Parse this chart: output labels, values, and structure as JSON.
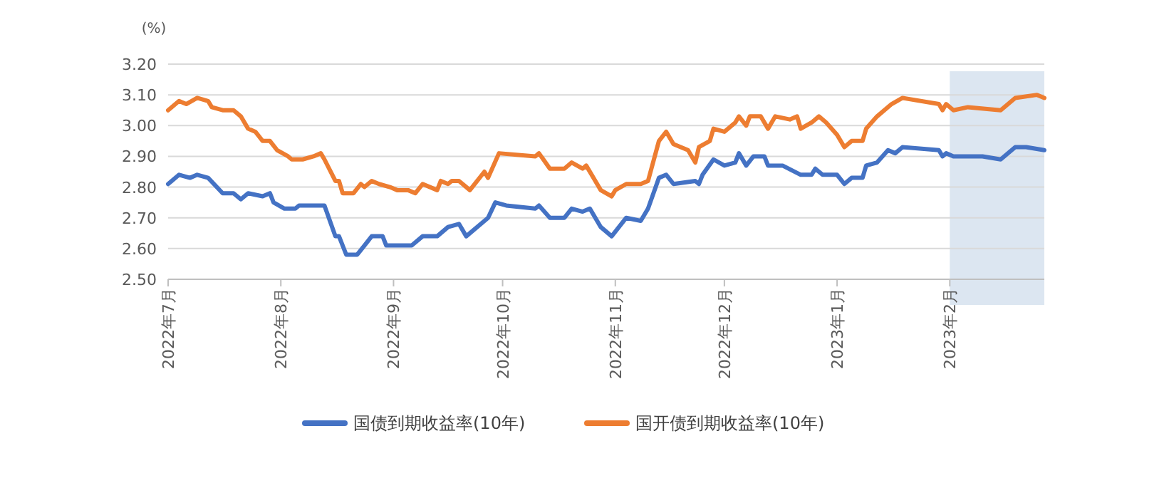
{
  "chart_data": {
    "type": "line",
    "ylabel": "(%)",
    "xlim": [
      "2022-07-01",
      "2023-02-27"
    ],
    "xticks": [
      {
        "value": "2022-07-01",
        "label": "2022年7月"
      },
      {
        "value": "2022-08-01",
        "label": "2022年8月"
      },
      {
        "value": "2022-09-01",
        "label": "2022年9月"
      },
      {
        "value": "2022-10-01",
        "label": "2022年10月"
      },
      {
        "value": "2022-11-01",
        "label": "2022年11月"
      },
      {
        "value": "2022-12-01",
        "label": "2022年12月"
      },
      {
        "value": "2023-01-01",
        "label": "2023年1月"
      },
      {
        "value": "2023-02-01",
        "label": "2023年2月"
      }
    ],
    "ylim": [
      2.5,
      3.2
    ],
    "yticks": [
      {
        "value": 2.5,
        "label": "2.50"
      },
      {
        "value": 2.6,
        "label": "2.60"
      },
      {
        "value": 2.7,
        "label": "2.70"
      },
      {
        "value": 2.8,
        "label": "2.80"
      },
      {
        "value": 2.9,
        "label": "2.90"
      },
      {
        "value": 3.0,
        "label": "3.00"
      },
      {
        "value": 3.1,
        "label": "3.10"
      },
      {
        "value": 3.2,
        "label": "3.20"
      }
    ],
    "grid": "y",
    "legend": "bottom",
    "marker": "none",
    "line_style": "solid",
    "bands": [
      {
        "axis": "x",
        "from": "2023-02-01",
        "to": "2023-02-27",
        "color": "#dce6f1"
      }
    ],
    "series": [
      {
        "name": "国债到期收益率(10年)",
        "color": "#4472c4",
        "x": [
          "2022-07-01",
          "2022-07-04",
          "2022-07-07",
          "2022-07-09",
          "2022-07-12",
          "2022-07-16",
          "2022-07-19",
          "2022-07-21",
          "2022-07-23",
          "2022-07-27",
          "2022-07-29",
          "2022-07-30",
          "2022-08-02",
          "2022-08-05",
          "2022-08-06",
          "2022-08-10",
          "2022-08-13",
          "2022-08-16",
          "2022-08-17",
          "2022-08-19",
          "2022-08-22",
          "2022-08-24",
          "2022-08-26",
          "2022-08-29",
          "2022-08-30",
          "2022-09-01",
          "2022-09-06",
          "2022-09-09",
          "2022-09-13",
          "2022-09-16",
          "2022-09-19",
          "2022-09-21",
          "2022-09-27",
          "2022-09-29",
          "2022-10-02",
          "2022-10-10",
          "2022-10-11",
          "2022-10-14",
          "2022-10-18",
          "2022-10-20",
          "2022-10-23",
          "2022-10-25",
          "2022-10-28",
          "2022-10-31",
          "2022-11-04",
          "2022-11-08",
          "2022-11-10",
          "2022-11-13",
          "2022-11-15",
          "2022-11-17",
          "2022-11-23",
          "2022-11-24",
          "2022-11-25",
          "2022-11-28",
          "2022-12-01",
          "2022-12-04",
          "2022-12-05",
          "2022-12-07",
          "2022-12-09",
          "2022-12-12",
          "2022-12-13",
          "2022-12-17",
          "2022-12-22",
          "2022-12-25",
          "2022-12-26",
          "2022-12-28",
          "2023-01-01",
          "2023-01-03",
          "2023-01-05",
          "2023-01-08",
          "2023-01-09",
          "2023-01-12",
          "2023-01-15",
          "2023-01-17",
          "2023-01-19",
          "2023-01-29",
          "2023-01-30",
          "2023-01-31",
          "2023-02-02",
          "2023-02-06",
          "2023-02-10",
          "2023-02-15",
          "2023-02-19",
          "2023-02-22",
          "2023-02-27"
        ],
        "values": [
          2.81,
          2.84,
          2.83,
          2.84,
          2.83,
          2.78,
          2.78,
          2.76,
          2.78,
          2.77,
          2.78,
          2.75,
          2.73,
          2.73,
          2.74,
          2.74,
          2.74,
          2.64,
          2.64,
          2.58,
          2.58,
          2.61,
          2.64,
          2.64,
          2.61,
          2.61,
          2.61,
          2.64,
          2.64,
          2.67,
          2.68,
          2.64,
          2.7,
          2.75,
          2.74,
          2.73,
          2.74,
          2.7,
          2.7,
          2.73,
          2.72,
          2.73,
          2.67,
          2.64,
          2.7,
          2.69,
          2.73,
          2.83,
          2.84,
          2.81,
          2.82,
          2.81,
          2.84,
          2.89,
          2.87,
          2.88,
          2.91,
          2.87,
          2.9,
          2.9,
          2.87,
          2.87,
          2.84,
          2.84,
          2.86,
          2.84,
          2.84,
          2.81,
          2.83,
          2.83,
          2.87,
          2.88,
          2.92,
          2.91,
          2.93,
          2.92,
          2.9,
          2.91,
          2.9,
          2.9,
          2.9,
          2.89,
          2.93,
          2.93,
          2.92
        ]
      },
      {
        "name": "国开债到期收益率(10年)",
        "color": "#ed7d31",
        "x": [
          "2022-07-01",
          "2022-07-04",
          "2022-07-06",
          "2022-07-09",
          "2022-07-12",
          "2022-07-13",
          "2022-07-16",
          "2022-07-19",
          "2022-07-21",
          "2022-07-23",
          "2022-07-25",
          "2022-07-27",
          "2022-07-29",
          "2022-07-31",
          "2022-08-03",
          "2022-08-04",
          "2022-08-07",
          "2022-08-10",
          "2022-08-12",
          "2022-08-13",
          "2022-08-16",
          "2022-08-17",
          "2022-08-18",
          "2022-08-21",
          "2022-08-23",
          "2022-08-24",
          "2022-08-26",
          "2022-08-28",
          "2022-08-31",
          "2022-09-02",
          "2022-09-05",
          "2022-09-07",
          "2022-09-09",
          "2022-09-13",
          "2022-09-14",
          "2022-09-16",
          "2022-09-17",
          "2022-09-19",
          "2022-09-22",
          "2022-09-26",
          "2022-09-27",
          "2022-09-30",
          "2022-10-10",
          "2022-10-11",
          "2022-10-14",
          "2022-10-16",
          "2022-10-18",
          "2022-10-20",
          "2022-10-23",
          "2022-10-24",
          "2022-10-28",
          "2022-10-31",
          "2022-11-01",
          "2022-11-04",
          "2022-11-08",
          "2022-11-10",
          "2022-11-13",
          "2022-11-15",
          "2022-11-17",
          "2022-11-21",
          "2022-11-23",
          "2022-11-24",
          "2022-11-27",
          "2022-11-28",
          "2022-12-01",
          "2022-12-04",
          "2022-12-05",
          "2022-12-07",
          "2022-12-08",
          "2022-12-11",
          "2022-12-13",
          "2022-12-15",
          "2022-12-19",
          "2022-12-21",
          "2022-12-22",
          "2022-12-25",
          "2022-12-27",
          "2022-12-29",
          "2023-01-01",
          "2023-01-03",
          "2023-01-05",
          "2023-01-08",
          "2023-01-09",
          "2023-01-12",
          "2023-01-16",
          "2023-01-19",
          "2023-01-29",
          "2023-01-30",
          "2023-01-31",
          "2023-02-02",
          "2023-02-06",
          "2023-02-15",
          "2023-02-19",
          "2023-02-25",
          "2023-02-27"
        ],
        "values": [
          3.05,
          3.08,
          3.07,
          3.09,
          3.08,
          3.06,
          3.05,
          3.05,
          3.03,
          2.99,
          2.98,
          2.95,
          2.95,
          2.92,
          2.9,
          2.89,
          2.89,
          2.9,
          2.91,
          2.89,
          2.82,
          2.82,
          2.78,
          2.78,
          2.81,
          2.8,
          2.82,
          2.81,
          2.8,
          2.79,
          2.79,
          2.78,
          2.81,
          2.79,
          2.82,
          2.81,
          2.82,
          2.82,
          2.79,
          2.85,
          2.83,
          2.91,
          2.9,
          2.91,
          2.86,
          2.86,
          2.86,
          2.88,
          2.86,
          2.87,
          2.79,
          2.77,
          2.79,
          2.81,
          2.81,
          2.82,
          2.95,
          2.98,
          2.94,
          2.92,
          2.88,
          2.93,
          2.95,
          2.99,
          2.98,
          3.01,
          3.03,
          3.0,
          3.03,
          3.03,
          2.99,
          3.03,
          3.02,
          3.03,
          2.99,
          3.01,
          3.03,
          3.01,
          2.97,
          2.93,
          2.95,
          2.95,
          2.99,
          3.03,
          3.07,
          3.09,
          3.07,
          3.05,
          3.07,
          3.05,
          3.06,
          3.05,
          3.09,
          3.1,
          3.09
        ]
      }
    ]
  }
}
